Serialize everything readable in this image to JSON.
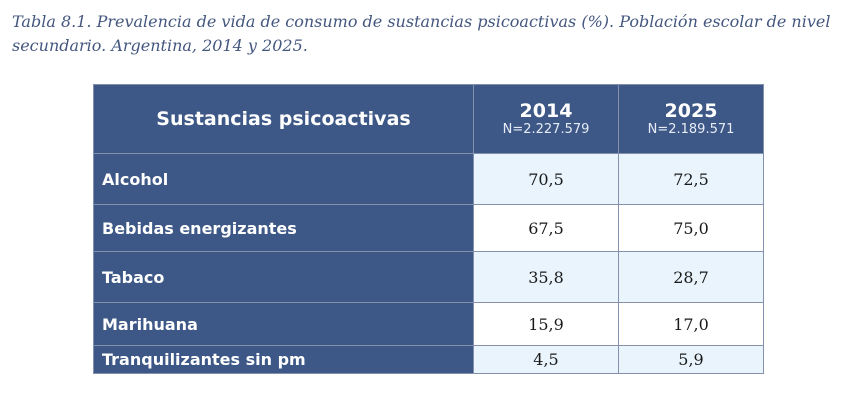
{
  "caption": "Tabla 8.1. Prevalencia de vida de consumo de sustancias psicoactivas (%). Población escolar de nivel secundario. Argentina, 2014 y 2025.",
  "table": {
    "header": {
      "substance": "Sustancias psicoactivas",
      "year1": {
        "label": "2014",
        "n": "N=2.227.579"
      },
      "year2": {
        "label": "2025",
        "n": "N=2.189.571"
      }
    },
    "rows": [
      {
        "label": "Alcohol",
        "v2014": "70,5",
        "v2025": "72,5"
      },
      {
        "label": "Bebidas energizantes",
        "v2014": "67,5",
        "v2025": "75,0"
      },
      {
        "label": "Tabaco",
        "v2014": "35,8",
        "v2025": "28,7"
      },
      {
        "label": "Marihuana",
        "v2014": "15,9",
        "v2025": "17,0"
      },
      {
        "label": "Tranquilizantes sin pm",
        "v2014": "4,5",
        "v2025": "5,9"
      }
    ]
  },
  "colors": {
    "header_bg": "#3d5887",
    "caption_text": "#44577f",
    "value_cell_shaded": "#e9f4fc",
    "value_cell_plain": "#ffffff"
  }
}
